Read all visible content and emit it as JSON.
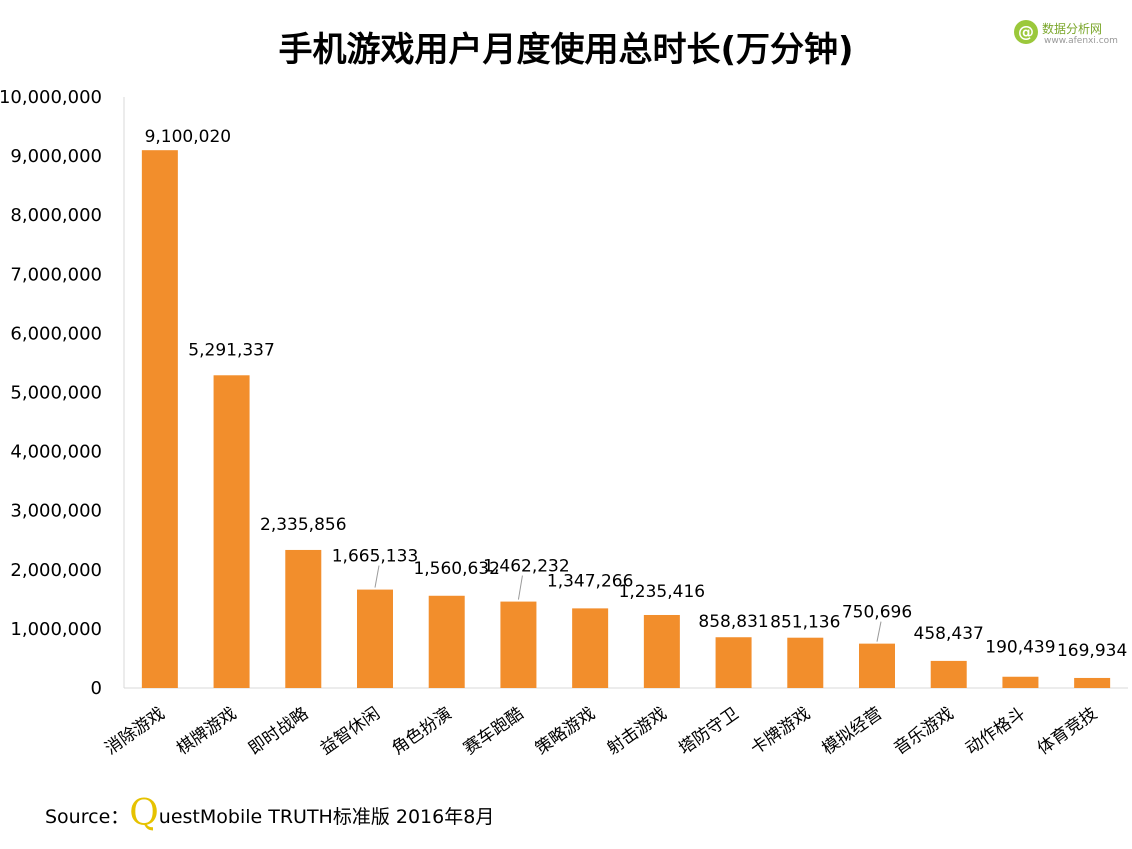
{
  "chart_data": {
    "type": "bar",
    "title": "手机游戏用户月度使用总时长(万分钟)",
    "categories": [
      "消除游戏",
      "棋牌游戏",
      "即时战略",
      "益智休闲",
      "角色扮演",
      "赛车跑酷",
      "策略游戏",
      "射击游戏",
      "塔防守卫",
      "卡牌游戏",
      "模拟经营",
      "音乐游戏",
      "动作格斗",
      "体育竞技"
    ],
    "values": [
      9100020,
      5291337,
      2335856,
      1665133,
      1560632,
      1462232,
      1347266,
      1235416,
      858831,
      851136,
      750696,
      458437,
      190439,
      169934
    ],
    "value_labels": [
      "9,100,020",
      "5,291,337",
      "2,335,856",
      "1,665,133",
      "1,560,632",
      "1,462,232",
      "1,347,266",
      "1,235,416",
      "858,831",
      "851,136",
      "750,696",
      "458,437",
      "190,439",
      "169,934"
    ],
    "ylim": [
      0,
      10000000
    ],
    "yticks": [
      0,
      1000000,
      2000000,
      3000000,
      4000000,
      5000000,
      6000000,
      7000000,
      8000000,
      9000000,
      10000000
    ],
    "ytick_labels": [
      "0",
      "1,000,000",
      "2,000,000",
      "3,000,000",
      "4,000,000",
      "5,000,000",
      "6,000,000",
      "7,000,000",
      "8,000,000",
      "9,000,000",
      "10,000,000"
    ],
    "xlabel": "",
    "ylabel": "",
    "grid": false,
    "bar_color": "#f28e2c"
  },
  "logo": {
    "symbol": "@",
    "name": "数据分析网",
    "url": "www.afenxi.com"
  },
  "source": {
    "prefix": "Source：",
    "brand_q": "Q",
    "brand_rest": "uestMobile",
    "text": " TRUTH标准版 2016年8月"
  },
  "colors": {
    "accent": "#f28e2c",
    "logo_green": "#9bc83b",
    "brand_yellow": "#e6c200"
  }
}
